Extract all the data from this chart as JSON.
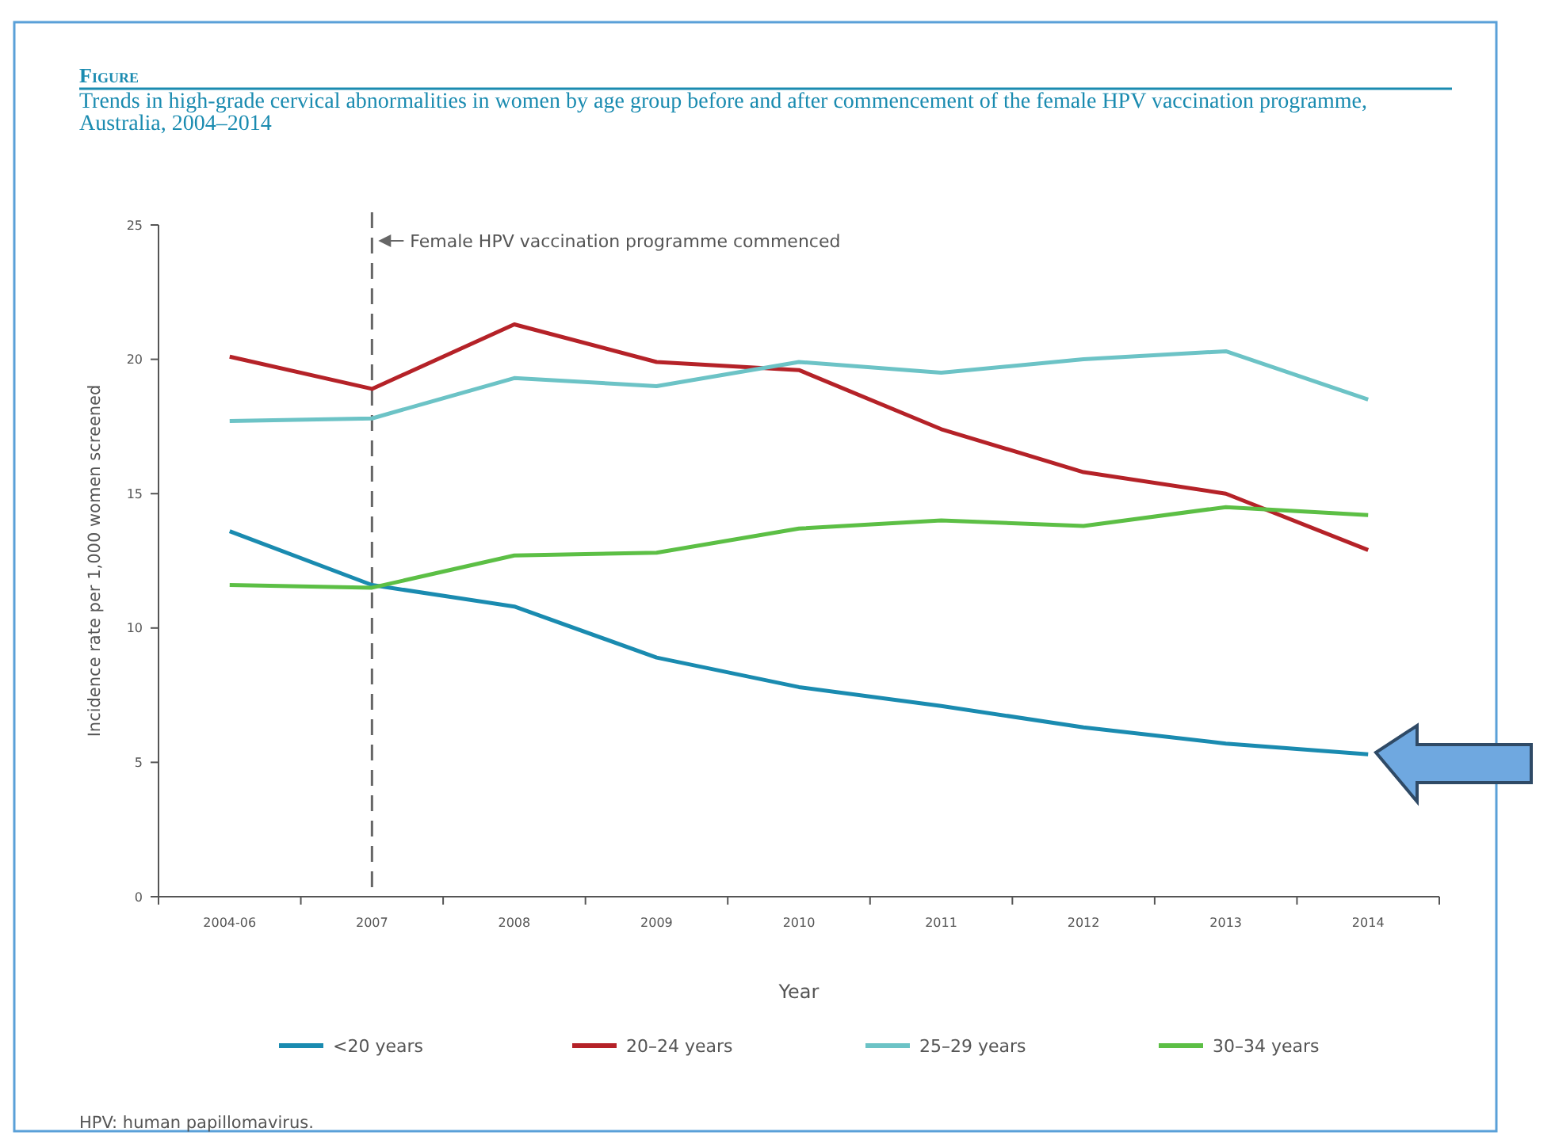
{
  "chart_data": {
    "type": "line",
    "title": "Figure",
    "subtitle": "Trends in high-grade cervical abnormalities in women by age group before and after commencement of the female HPV vaccination programme, Australia, 2004–2014",
    "xlabel": "Year",
    "ylabel": "Incidence rate per 1,000 women screened",
    "categories": [
      "2004-06",
      "2007",
      "2008",
      "2009",
      "2010",
      "2011",
      "2012",
      "2013",
      "2014"
    ],
    "series": [
      {
        "name": "<20 years",
        "color": "#1a8bb0",
        "values": [
          13.6,
          11.6,
          10.8,
          8.9,
          7.8,
          7.1,
          6.3,
          5.7,
          5.3
        ]
      },
      {
        "name": "20–24 years",
        "color": "#b52228",
        "values": [
          20.1,
          18.9,
          21.3,
          19.9,
          19.6,
          17.4,
          15.8,
          15.0,
          12.9
        ]
      },
      {
        "name": "25–29 years",
        "color": "#6cc3c6",
        "values": [
          17.7,
          17.8,
          19.3,
          19.0,
          19.9,
          19.5,
          20.0,
          20.3,
          18.5
        ]
      },
      {
        "name": "30–34 years",
        "color": "#5cbf45",
        "values": [
          11.6,
          11.5,
          12.7,
          12.8,
          13.7,
          14.0,
          13.8,
          14.5,
          14.2
        ]
      }
    ],
    "ylim": [
      0,
      25
    ],
    "yticks": [
      0,
      5,
      10,
      15,
      20,
      25
    ],
    "grid": false,
    "legend": "bottom",
    "marker": "none",
    "line_style": "solid",
    "ref_lines": [
      {
        "axis": "x",
        "value": "2007",
        "label": "Female HPV vaccination programme commenced",
        "color": "#666666",
        "line_style": "dashed"
      }
    ],
    "annotations": [
      "HPV: human papillomavirus."
    ]
  }
}
